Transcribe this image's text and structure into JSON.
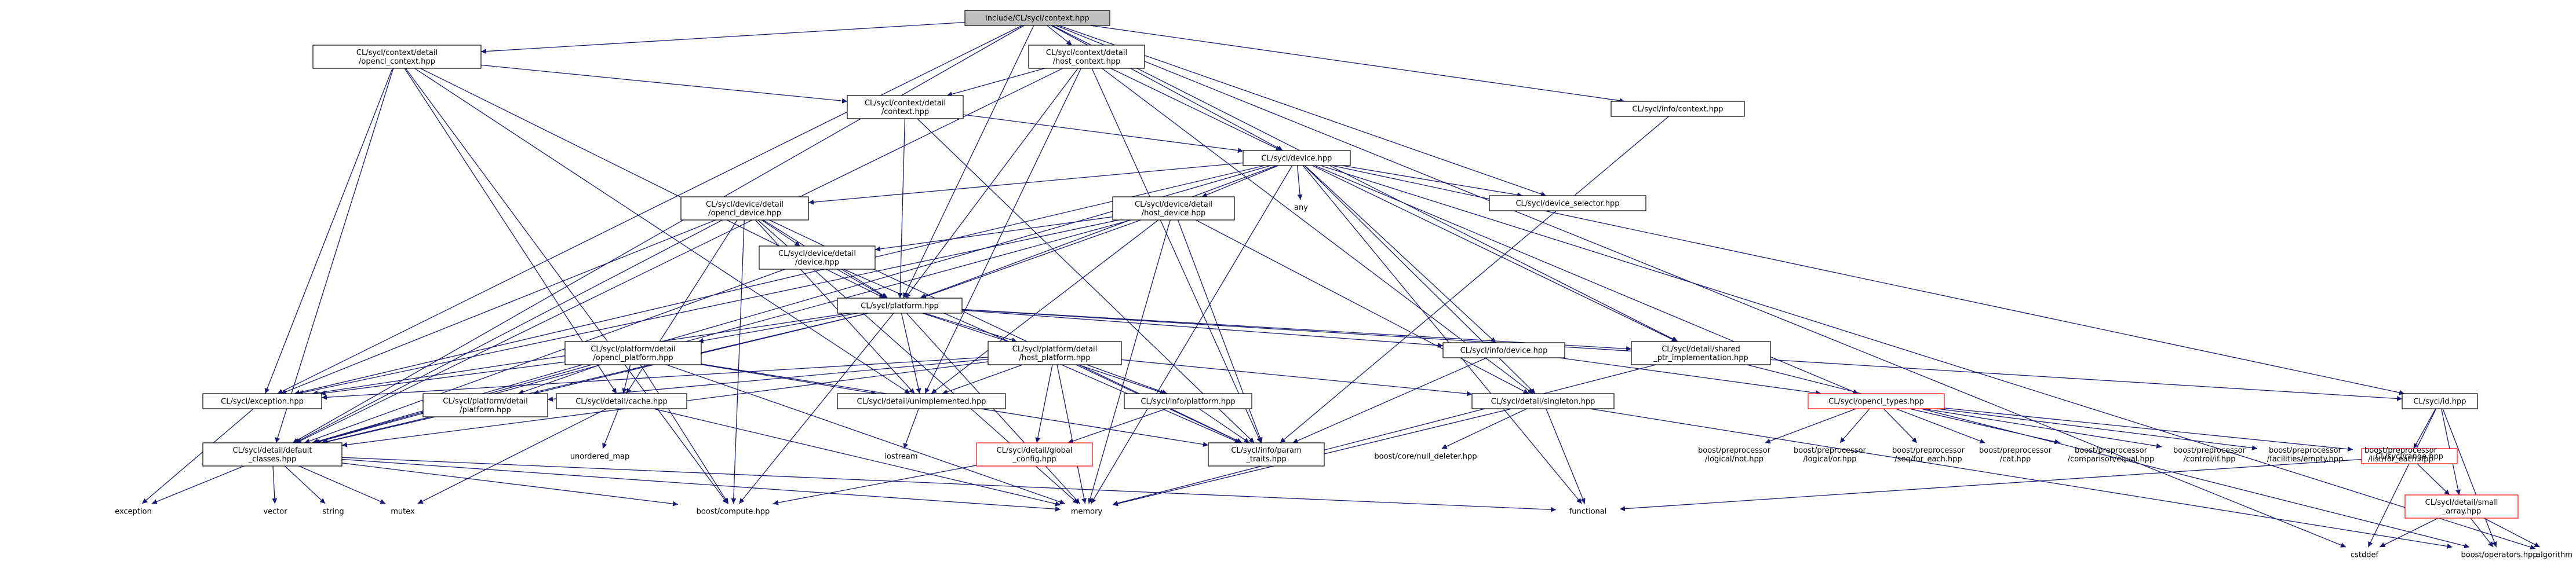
{
  "colors": {
    "edge": "#191970",
    "root_fill": "#bfbfbf",
    "node_border": "#000000",
    "incomplete_border": "#ff0000"
  },
  "nodes": [
    {
      "id": "root",
      "lines": [
        "include/CL/sycl/context.hpp"
      ],
      "style": "root"
    },
    {
      "id": "opencl_context",
      "lines": [
        "CL/sycl/context/detail",
        "/opencl_context.hpp"
      ],
      "style": "boxed"
    },
    {
      "id": "host_context",
      "lines": [
        "CL/sycl/context/detail",
        "/host_context.hpp"
      ],
      "style": "boxed"
    },
    {
      "id": "info_context",
      "lines": [
        "CL/sycl/info/context.hpp"
      ],
      "style": "boxed"
    },
    {
      "id": "ctx_context",
      "lines": [
        "CL/sycl/context/detail",
        "/context.hpp"
      ],
      "style": "boxed"
    },
    {
      "id": "device",
      "lines": [
        "CL/sycl/device.hpp"
      ],
      "style": "boxed"
    },
    {
      "id": "device_selector",
      "lines": [
        "CL/sycl/device_selector.hpp"
      ],
      "style": "boxed"
    },
    {
      "id": "any",
      "lines": [
        "any"
      ],
      "style": "plain"
    },
    {
      "id": "opencl_device",
      "lines": [
        "CL/sycl/device/detail",
        "/opencl_device.hpp"
      ],
      "style": "boxed"
    },
    {
      "id": "host_device",
      "lines": [
        "CL/sycl/device/detail",
        "/host_device.hpp"
      ],
      "style": "boxed"
    },
    {
      "id": "dev_device",
      "lines": [
        "CL/sycl/device/detail",
        "/device.hpp"
      ],
      "style": "boxed"
    },
    {
      "id": "platform",
      "lines": [
        "CL/sycl/platform.hpp"
      ],
      "style": "boxed"
    },
    {
      "id": "info_device",
      "lines": [
        "CL/sycl/info/device.hpp"
      ],
      "style": "boxed"
    },
    {
      "id": "shared_ptr",
      "lines": [
        "CL/sycl/detail/shared",
        "_ptr_implementation.hpp"
      ],
      "style": "boxed"
    },
    {
      "id": "opencl_platform",
      "lines": [
        "CL/sycl/platform/detail",
        "/opencl_platform.hpp"
      ],
      "style": "boxed"
    },
    {
      "id": "host_platform",
      "lines": [
        "CL/sycl/platform/detail",
        "/host_platform.hpp"
      ],
      "style": "boxed"
    },
    {
      "id": "exception",
      "lines": [
        "CL/sycl/exception.hpp"
      ],
      "style": "boxed"
    },
    {
      "id": "plat_platform",
      "lines": [
        "CL/sycl/platform/detail",
        "/platform.hpp"
      ],
      "style": "boxed"
    },
    {
      "id": "cache",
      "lines": [
        "CL/sycl/detail/cache.hpp"
      ],
      "style": "boxed"
    },
    {
      "id": "unimplemented",
      "lines": [
        "CL/sycl/detail/unimplemented.hpp"
      ],
      "style": "boxed"
    },
    {
      "id": "info_platform",
      "lines": [
        "CL/sycl/info/platform.hpp"
      ],
      "style": "boxed"
    },
    {
      "id": "singleton",
      "lines": [
        "CL/sycl/detail/singleton.hpp"
      ],
      "style": "boxed"
    },
    {
      "id": "opencl_types",
      "lines": [
        "CL/sycl/opencl_types.hpp"
      ],
      "style": "red"
    },
    {
      "id": "id",
      "lines": [
        "CL/sycl/id.hpp"
      ],
      "style": "boxed"
    },
    {
      "id": "default_classes",
      "lines": [
        "CL/sycl/detail/default",
        "_classes.hpp"
      ],
      "style": "boxed"
    },
    {
      "id": "global_config",
      "lines": [
        "CL/sycl/detail/global",
        "_config.hpp"
      ],
      "style": "red"
    },
    {
      "id": "param_traits",
      "lines": [
        "CL/sycl/info/param",
        "_traits.hpp"
      ],
      "style": "boxed"
    },
    {
      "id": "range",
      "lines": [
        "CL/sycl/range.hpp"
      ],
      "style": "red"
    },
    {
      "id": "small_array",
      "lines": [
        "CL/sycl/detail/small",
        "_array.hpp"
      ],
      "style": "red"
    },
    {
      "id": "unordered_map",
      "lines": [
        "unordered_map"
      ],
      "style": "plain"
    },
    {
      "id": "iostream",
      "lines": [
        "iostream"
      ],
      "style": "plain"
    },
    {
      "id": "null_deleter",
      "lines": [
        "boost/core/null_deleter.hpp"
      ],
      "style": "plain"
    },
    {
      "id": "pp_logical_not",
      "lines": [
        "boost/preprocessor",
        "/logical/not.hpp"
      ],
      "style": "plain"
    },
    {
      "id": "pp_logical_or",
      "lines": [
        "boost/preprocessor",
        "/logical/or.hpp"
      ],
      "style": "plain"
    },
    {
      "id": "pp_seq_for_each",
      "lines": [
        "boost/preprocessor",
        "/seq/for_each.hpp"
      ],
      "style": "plain"
    },
    {
      "id": "pp_cat",
      "lines": [
        "boost/preprocessor",
        "/cat.hpp"
      ],
      "style": "plain"
    },
    {
      "id": "pp_comparison_equal",
      "lines": [
        "boost/preprocessor",
        "/comparison/equal.hpp"
      ],
      "style": "plain"
    },
    {
      "id": "pp_control_if",
      "lines": [
        "boost/preprocessor",
        "/control/if.hpp"
      ],
      "style": "plain"
    },
    {
      "id": "pp_facilities_empty",
      "lines": [
        "boost/preprocessor",
        "/facilities/empty.hpp"
      ],
      "style": "plain"
    },
    {
      "id": "pp_list_for_each",
      "lines": [
        "boost/preprocessor",
        "/list/for_each.hpp"
      ],
      "style": "plain"
    },
    {
      "id": "exception_std",
      "lines": [
        "exception"
      ],
      "style": "plain"
    },
    {
      "id": "vector",
      "lines": [
        "vector"
      ],
      "style": "plain"
    },
    {
      "id": "string",
      "lines": [
        "string"
      ],
      "style": "plain"
    },
    {
      "id": "mutex",
      "lines": [
        "mutex"
      ],
      "style": "plain"
    },
    {
      "id": "boost_compute",
      "lines": [
        "boost/compute.hpp"
      ],
      "style": "plain"
    },
    {
      "id": "memory",
      "lines": [
        "memory"
      ],
      "style": "plain"
    },
    {
      "id": "functional",
      "lines": [
        "functional"
      ],
      "style": "plain"
    },
    {
      "id": "cstddef",
      "lines": [
        "cstddef"
      ],
      "style": "plain"
    },
    {
      "id": "boost_operators",
      "lines": [
        "boost/operators.hpp"
      ],
      "style": "plain"
    },
    {
      "id": "algorithm",
      "lines": [
        "algorithm"
      ],
      "style": "plain"
    }
  ],
  "edges": [
    [
      "root",
      "opencl_context"
    ],
    [
      "root",
      "host_context"
    ],
    [
      "root",
      "info_context"
    ],
    [
      "root",
      "device"
    ],
    [
      "root",
      "device_selector"
    ],
    [
      "root",
      "platform"
    ],
    [
      "root",
      "shared_ptr"
    ],
    [
      "root",
      "exception"
    ],
    [
      "root",
      "default_classes"
    ],
    [
      "root",
      "cstddef"
    ],
    [
      "opencl_context",
      "ctx_context"
    ],
    [
      "opencl_context",
      "platform"
    ],
    [
      "opencl_context",
      "exception"
    ],
    [
      "opencl_context",
      "default_classes"
    ],
    [
      "opencl_context",
      "unimplemented"
    ],
    [
      "opencl_context",
      "cache"
    ],
    [
      "opencl_context",
      "boost_compute"
    ],
    [
      "host_context",
      "ctx_context"
    ],
    [
      "host_context",
      "device"
    ],
    [
      "host_context",
      "platform"
    ],
    [
      "host_context",
      "unimplemented"
    ],
    [
      "host_context",
      "singleton"
    ],
    [
      "host_context",
      "default_classes"
    ],
    [
      "host_context",
      "param_traits"
    ],
    [
      "ctx_context",
      "device"
    ],
    [
      "ctx_context",
      "platform"
    ],
    [
      "ctx_context",
      "param_traits"
    ],
    [
      "info_context",
      "param_traits"
    ],
    [
      "device",
      "any"
    ],
    [
      "device",
      "opencl_device"
    ],
    [
      "device",
      "host_device"
    ],
    [
      "device",
      "platform"
    ],
    [
      "device",
      "info_device"
    ],
    [
      "device",
      "device_selector"
    ],
    [
      "device",
      "shared_ptr"
    ],
    [
      "device",
      "exception"
    ],
    [
      "device",
      "default_classes"
    ],
    [
      "device",
      "singleton"
    ],
    [
      "device",
      "id"
    ],
    [
      "device",
      "memory"
    ],
    [
      "device",
      "algorithm"
    ],
    [
      "device",
      "functional"
    ],
    [
      "device",
      "opencl_types"
    ],
    [
      "opencl_device",
      "dev_device"
    ],
    [
      "opencl_device",
      "platform"
    ],
    [
      "opencl_device",
      "exception"
    ],
    [
      "opencl_device",
      "default_classes"
    ],
    [
      "opencl_device",
      "unimplemented"
    ],
    [
      "opencl_device",
      "cache"
    ],
    [
      "opencl_device",
      "boost_compute"
    ],
    [
      "opencl_device",
      "param_traits"
    ],
    [
      "opencl_device",
      "memory"
    ],
    [
      "host_device",
      "dev_device"
    ],
    [
      "host_device",
      "platform"
    ],
    [
      "host_device",
      "unimplemented"
    ],
    [
      "host_device",
      "singleton"
    ],
    [
      "host_device",
      "param_traits"
    ],
    [
      "host_device",
      "memory"
    ],
    [
      "host_device",
      "exception"
    ],
    [
      "host_device",
      "default_classes"
    ],
    [
      "dev_device",
      "platform"
    ],
    [
      "dev_device",
      "default_classes"
    ],
    [
      "dev_device",
      "param_traits"
    ],
    [
      "platform",
      "opencl_platform"
    ],
    [
      "platform",
      "host_platform"
    ],
    [
      "platform",
      "info_device"
    ],
    [
      "platform",
      "info_platform"
    ],
    [
      "platform",
      "shared_ptr"
    ],
    [
      "platform",
      "exception"
    ],
    [
      "platform",
      "plat_platform"
    ],
    [
      "platform",
      "default_classes"
    ],
    [
      "platform",
      "unimplemented"
    ],
    [
      "platform",
      "boost_compute"
    ],
    [
      "platform",
      "memory"
    ],
    [
      "platform",
      "id"
    ],
    [
      "opencl_platform",
      "plat_platform"
    ],
    [
      "opencl_platform",
      "cache"
    ],
    [
      "opencl_platform",
      "exception"
    ],
    [
      "opencl_platform",
      "unimplemented"
    ],
    [
      "opencl_platform",
      "boost_compute"
    ],
    [
      "opencl_platform",
      "memory"
    ],
    [
      "opencl_platform",
      "default_classes"
    ],
    [
      "opencl_platform",
      "param_traits"
    ],
    [
      "host_platform",
      "plat_platform"
    ],
    [
      "host_platform",
      "exception"
    ],
    [
      "host_platform",
      "unimplemented"
    ],
    [
      "host_platform",
      "info_platform"
    ],
    [
      "host_platform",
      "singleton"
    ],
    [
      "host_platform",
      "global_config"
    ],
    [
      "host_platform",
      "param_traits"
    ],
    [
      "host_platform",
      "default_classes"
    ],
    [
      "host_platform",
      "memory"
    ],
    [
      "info_device",
      "param_traits"
    ],
    [
      "info_device",
      "opencl_types"
    ],
    [
      "shared_ptr",
      "memory"
    ],
    [
      "shared_ptr",
      "boost_operators"
    ],
    [
      "exception",
      "exception_std"
    ],
    [
      "plat_platform",
      "default_classes"
    ],
    [
      "cache",
      "unordered_map"
    ],
    [
      "cache",
      "mutex"
    ],
    [
      "cache",
      "memory"
    ],
    [
      "unimplemented",
      "iostream"
    ],
    [
      "info_platform",
      "param_traits"
    ],
    [
      "info_platform",
      "global_config"
    ],
    [
      "singleton",
      "null_deleter"
    ],
    [
      "singleton",
      "memory"
    ],
    [
      "singleton",
      "functional"
    ],
    [
      "singleton",
      "boost_operators"
    ],
    [
      "opencl_types",
      "pp_logical_not"
    ],
    [
      "opencl_types",
      "pp_logical_or"
    ],
    [
      "opencl_types",
      "pp_seq_for_each"
    ],
    [
      "opencl_types",
      "pp_cat"
    ],
    [
      "opencl_types",
      "pp_comparison_equal"
    ],
    [
      "opencl_types",
      "pp_control_if"
    ],
    [
      "opencl_types",
      "pp_facilities_empty"
    ],
    [
      "opencl_types",
      "pp_list_for_each"
    ],
    [
      "id",
      "range"
    ],
    [
      "id",
      "small_array"
    ],
    [
      "id",
      "cstddef"
    ],
    [
      "id",
      "boost_operators"
    ],
    [
      "default_classes",
      "exception_std"
    ],
    [
      "default_classes",
      "vector"
    ],
    [
      "default_classes",
      "string"
    ],
    [
      "default_classes",
      "mutex"
    ],
    [
      "default_classes",
      "boost_compute"
    ],
    [
      "default_classes",
      "memory"
    ],
    [
      "default_classes",
      "functional"
    ],
    [
      "global_config",
      "boost_compute"
    ],
    [
      "range",
      "small_array"
    ],
    [
      "range",
      "functional"
    ],
    [
      "small_array",
      "cstddef"
    ],
    [
      "small_array",
      "boost_operators"
    ],
    [
      "small_array",
      "algorithm"
    ]
  ]
}
